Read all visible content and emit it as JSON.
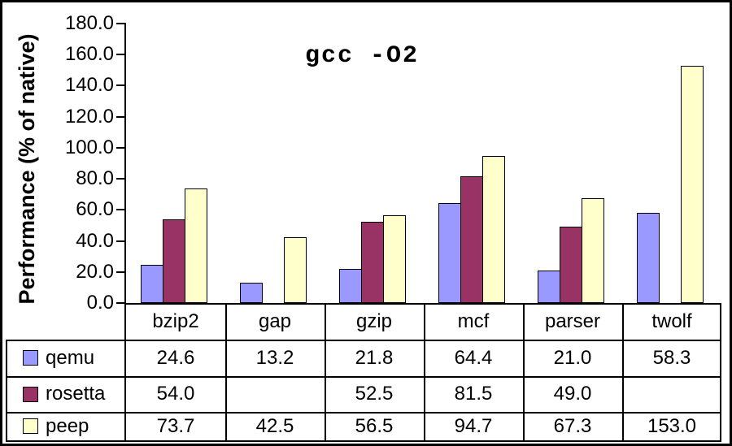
{
  "chart": {
    "title": "gcc -O2",
    "y_axis_label": "Performance (% of native)"
  },
  "chart_data": {
    "type": "bar",
    "title": "gcc -O2",
    "xlabel": "",
    "ylabel": "Performance (% of native)",
    "categories": [
      "bzip2",
      "gap",
      "gzip",
      "mcf",
      "parser",
      "twolf"
    ],
    "series": [
      {
        "name": "qemu",
        "color": "#9999FF",
        "values": [
          24.6,
          13.2,
          21.8,
          64.4,
          21.0,
          58.3
        ]
      },
      {
        "name": "rosetta",
        "color": "#993366",
        "values": [
          54.0,
          null,
          52.5,
          81.5,
          49.0,
          null
        ]
      },
      {
        "name": "peep",
        "color": "#FFFFCC",
        "values": [
          73.7,
          42.5,
          56.5,
          94.7,
          67.3,
          153.0
        ]
      }
    ],
    "ylim": [
      0,
      180
    ],
    "ytick_step": 20,
    "ytick_labels": [
      "0.0",
      "20.0",
      "40.0",
      "60.0",
      "80.0",
      "100.0",
      "120.0",
      "140.0",
      "160.0",
      "180.0"
    ],
    "grid": false,
    "legend_position": "data-table-left-column",
    "data_table_shown": true,
    "bar_border_color": "#000000",
    "axis_color": "#000000",
    "background_color": "#FFFFFF"
  }
}
